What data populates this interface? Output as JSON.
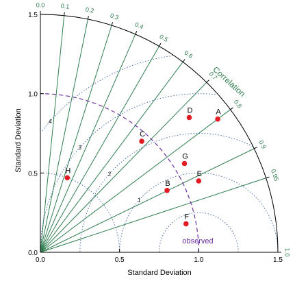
{
  "chart_data": {
    "type": "scatter",
    "subtype": "taylor-diagram",
    "title": "",
    "xlabel": "Standard Deviation",
    "ylabel": "Standard Deviation",
    "arc_label": "Correlation",
    "reference_label": "observed",
    "std_range": [
      0,
      1.5
    ],
    "std_ticks": [
      "0.0",
      "0.5",
      "1.0",
      "1.5"
    ],
    "correlation_ticks": [
      {
        "r": 0.0,
        "label": "0.0"
      },
      {
        "r": 0.1,
        "label": "0.1"
      },
      {
        "r": 0.2,
        "label": "0.2"
      },
      {
        "r": 0.3,
        "label": "0.3"
      },
      {
        "r": 0.4,
        "label": "0.4"
      },
      {
        "r": 0.5,
        "label": "0.5"
      },
      {
        "r": 0.6,
        "label": "0.6"
      },
      {
        "r": 0.7,
        "label": "0.7"
      },
      {
        "r": 0.8,
        "label": "0.8"
      },
      {
        "r": 0.9,
        "label": "0.9"
      },
      {
        "r": 0.95,
        "label": "0.95"
      },
      {
        "r": 1.0,
        "label": "1.0"
      }
    ],
    "std_dotted_arcs": [
      0.5,
      1.5
    ],
    "reference_std": 1.0,
    "rms_contours": [
      {
        "value": 0.25,
        "label": ""
      },
      {
        "value": 0.5,
        "label": "1"
      },
      {
        "value": 0.75,
        "label": "2"
      },
      {
        "value": 1.0,
        "label": "3"
      },
      {
        "value": 1.25,
        "label": "4"
      }
    ],
    "points": [
      {
        "label": "A",
        "x": 1.12,
        "y": 0.84
      },
      {
        "label": "B",
        "x": 0.8,
        "y": 0.39
      },
      {
        "label": "C",
        "x": 0.64,
        "y": 0.7
      },
      {
        "label": "D",
        "x": 0.94,
        "y": 0.85
      },
      {
        "label": "E",
        "x": 1.0,
        "y": 0.45
      },
      {
        "label": "F",
        "x": 0.92,
        "y": 0.18
      },
      {
        "label": "G",
        "x": 0.91,
        "y": 0.56
      },
      {
        "label": "H",
        "x": 0.17,
        "y": 0.47
      }
    ],
    "grid": true,
    "colors": {
      "radial": "#2e7d4f",
      "dotted": "#4a6fa5",
      "reference": "#6b2fa0",
      "points": "#e31c23",
      "axis": "#000000"
    }
  }
}
